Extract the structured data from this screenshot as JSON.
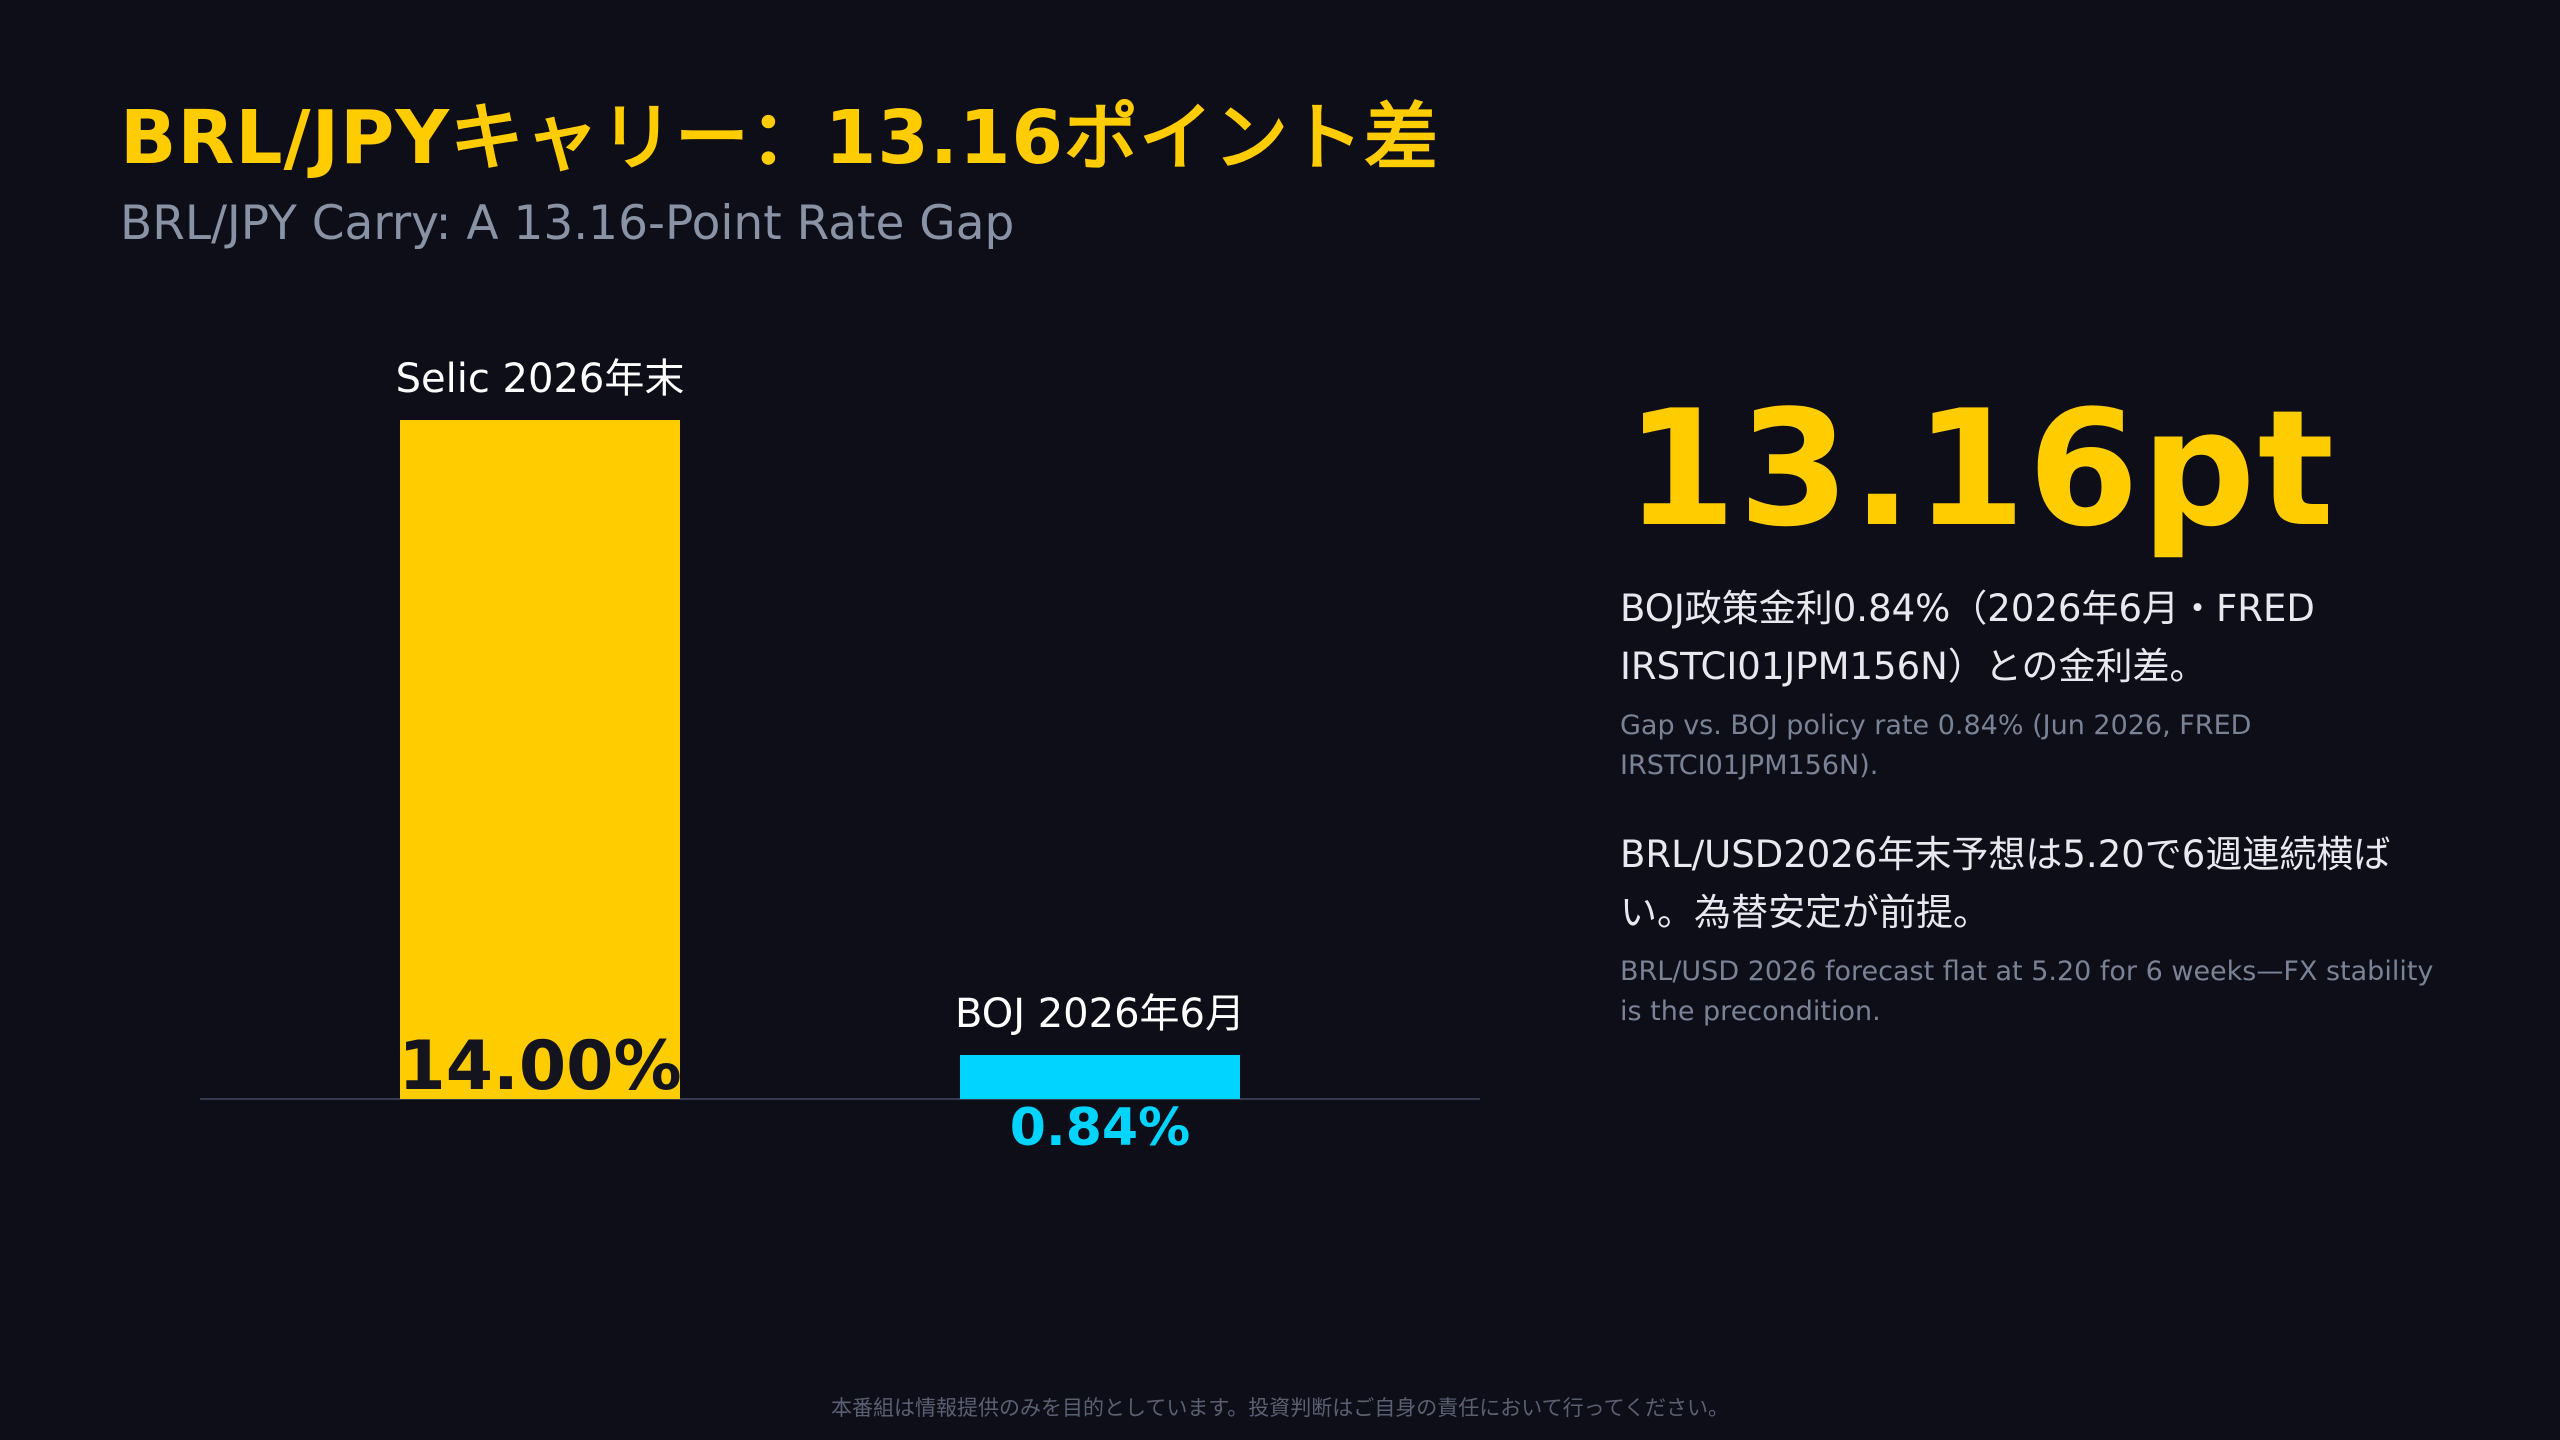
{
  "header": {
    "title": "BRL/JPYキャリー：13.16ポイント差",
    "subtitle": "BRL/JPY Carry: A 13.16-Point Rate Gap"
  },
  "highlight": {
    "value": "13.16pt"
  },
  "notes": [
    {
      "jp": "BOJ政策金利0.84%（2026年6月・FRED IRSTCI01JPM156N）との金利差。",
      "en": "Gap vs. BOJ policy rate 0.84% (Jun 2026, FRED IRSTCI01JPM156N)."
    },
    {
      "jp": "BRL/USD2026年末予想は5.20で6週連続横ばい。為替安定が前提。",
      "en": "BRL/USD 2026 forecast flat at 5.20 for 6 weeks—FX stability is the precondition."
    }
  ],
  "footer": {
    "disclaimer": "本番組は情報提供のみを目的としています。投資判断はご自身の責任において行ってください。"
  },
  "colors": {
    "background": "#0e0e18",
    "accent_yellow": "#ffcc00",
    "accent_cyan": "#00d4ff"
  },
  "chart_data": {
    "type": "bar",
    "categories": [
      "Selic 2026年末",
      "BOJ 2026年6月"
    ],
    "values": [
      14.0,
      0.84
    ],
    "value_labels": [
      "14.00%",
      "0.84%"
    ],
    "colors": [
      "#ffcc00",
      "#00d4ff"
    ],
    "ylim": [
      0,
      14.0
    ],
    "grid": false,
    "legend": "none"
  }
}
